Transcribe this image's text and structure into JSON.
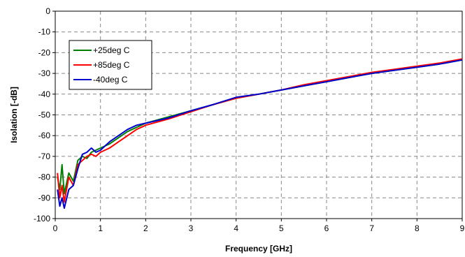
{
  "chart_data": {
    "type": "line",
    "title": "",
    "xlabel": "Frequency [GHz]",
    "ylabel": "Isolation [-dB]",
    "xlim": [
      0,
      9
    ],
    "ylim": [
      -100,
      0
    ],
    "x_ticks": [
      "0",
      "1",
      "2",
      "3",
      "4",
      "5",
      "6",
      "7",
      "8",
      "9"
    ],
    "y_ticks": [
      "0",
      "-10",
      "-20",
      "-30",
      "-40",
      "-50",
      "-60",
      "-70",
      "-80",
      "-90",
      "-100"
    ],
    "grid": true,
    "legend_position": "top-left",
    "series": [
      {
        "name": "+25deg C",
        "color": "#008000",
        "x": [
          0.05,
          0.1,
          0.15,
          0.2,
          0.3,
          0.4,
          0.5,
          0.6,
          0.7,
          0.8,
          0.9,
          1.0,
          1.2,
          1.4,
          1.6,
          1.8,
          2.0,
          2.5,
          3.0,
          3.5,
          4.0,
          4.5,
          5.0,
          5.5,
          6.0,
          6.5,
          7.0,
          7.5,
          8.0,
          8.5,
          9.0
        ],
        "values": [
          -80,
          -86,
          -74,
          -88,
          -78,
          -82,
          -72,
          -70,
          -71,
          -68,
          -67,
          -66,
          -64,
          -61,
          -58,
          -56,
          -54,
          -51,
          -48,
          -45,
          -42,
          -40,
          -38,
          -36,
          -34,
          -32,
          -30,
          -28.5,
          -27,
          -25.5,
          -23.5
        ]
      },
      {
        "name": "+85deg C",
        "color": "#ff0000",
        "x": [
          0.05,
          0.1,
          0.15,
          0.2,
          0.3,
          0.4,
          0.5,
          0.6,
          0.7,
          0.8,
          0.9,
          1.0,
          1.2,
          1.4,
          1.6,
          1.8,
          2.0,
          2.5,
          3.0,
          3.5,
          4.0,
          4.5,
          5.0,
          5.5,
          6.0,
          6.5,
          7.0,
          7.5,
          8.0,
          8.5,
          9.0
        ],
        "values": [
          -78,
          -90,
          -84,
          -92,
          -80,
          -84,
          -74,
          -72,
          -70,
          -69,
          -70,
          -68,
          -66,
          -63,
          -60,
          -57,
          -55,
          -52,
          -48.5,
          -45,
          -42,
          -40,
          -38,
          -35.5,
          -33.5,
          -31.5,
          -29.5,
          -28,
          -26.5,
          -25,
          -23
        ]
      },
      {
        "name": "-40deg C",
        "color": "#0000cc",
        "x": [
          0.05,
          0.1,
          0.15,
          0.2,
          0.3,
          0.4,
          0.5,
          0.6,
          0.7,
          0.8,
          0.9,
          1.0,
          1.2,
          1.4,
          1.6,
          1.8,
          2.0,
          2.5,
          3.0,
          3.5,
          4.0,
          4.5,
          5.0,
          5.5,
          6.0,
          6.5,
          7.0,
          7.5,
          8.0,
          8.5,
          9.0
        ],
        "values": [
          -86,
          -94,
          -90,
          -95,
          -86,
          -84,
          -76,
          -69,
          -68,
          -66,
          -68,
          -67,
          -63,
          -60,
          -57,
          -55,
          -54,
          -51.5,
          -48,
          -45,
          -41.5,
          -40,
          -38,
          -36,
          -34,
          -32,
          -30,
          -28.5,
          -27,
          -25.5,
          -23.5
        ]
      }
    ]
  }
}
